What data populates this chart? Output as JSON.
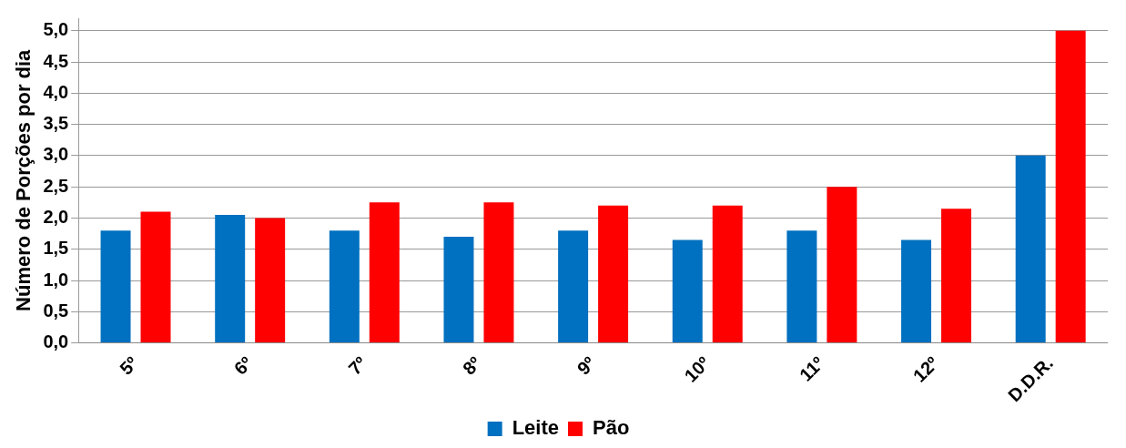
{
  "chart_data": {
    "type": "bar",
    "ylabel": "Número de Porções por dia",
    "categories": [
      "5º",
      "6º",
      "7º",
      "8º",
      "9º",
      "10º",
      "11º",
      "12º",
      "D.D.R."
    ],
    "series": [
      {
        "name": "Leite",
        "color": "#0070c0",
        "values": [
          1.8,
          2.05,
          1.8,
          1.7,
          1.8,
          1.65,
          1.8,
          1.65,
          3.0
        ]
      },
      {
        "name": "Pão",
        "color": "#ff0000",
        "values": [
          2.1,
          2.0,
          2.25,
          2.25,
          2.2,
          2.2,
          2.5,
          2.15,
          5.0
        ]
      }
    ],
    "ylim": [
      0,
      5.2
    ],
    "yticks": [
      {
        "value": 0,
        "label": "0,0"
      },
      {
        "value": 0.5,
        "label": "0,5"
      },
      {
        "value": 1,
        "label": "1,0"
      },
      {
        "value": 1.5,
        "label": "1,5"
      },
      {
        "value": 2,
        "label": "2,0"
      },
      {
        "value": 2.5,
        "label": "2,5"
      },
      {
        "value": 3,
        "label": "3,0"
      },
      {
        "value": 3.5,
        "label": "3,5"
      },
      {
        "value": 4,
        "label": "4,0"
      },
      {
        "value": 4.5,
        "label": "4,5"
      },
      {
        "value": 5,
        "label": "5,0"
      }
    ],
    "grid": "y",
    "legend": "bottom"
  }
}
